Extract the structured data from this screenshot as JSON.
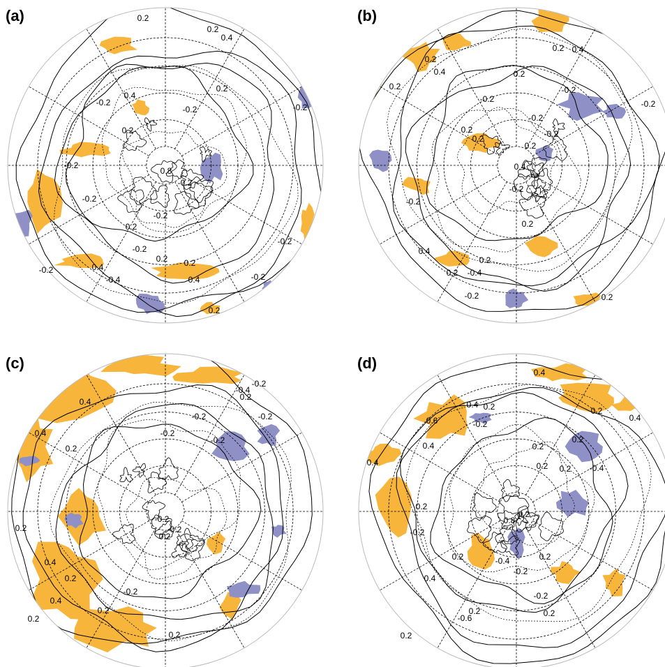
{
  "panels": [
    {
      "label": "(a)",
      "contour_labels": [
        "0.2",
        "0.2",
        "0.4",
        "0.2",
        "-0.2",
        "0.4",
        "-0.2",
        "0.2",
        "0.8",
        "-0.2",
        "-0.2",
        "-0.2",
        "-0.2",
        "0.2",
        "-0.2",
        "0.2",
        "0.2",
        "-0.2",
        "0.4",
        "-0.4",
        "0.4",
        "-0.2",
        "-0.2",
        "0.2",
        "-0.2"
      ]
    },
    {
      "label": "(b)",
      "contour_labels": [
        "0.2",
        "0.4",
        "0.2",
        "0.2",
        "0.2",
        "0.4",
        "-0.2",
        "-0.2",
        "-0.2",
        "0.2",
        "0.2",
        "-0.2",
        "0.2",
        "0.4",
        "-0.2",
        "-0.2",
        "0.2",
        "0.4",
        "0.2",
        "0.2",
        "-0.4",
        "-0.2",
        "0.2",
        "-0.2"
      ]
    },
    {
      "label": "(c)",
      "contour_labels": [
        "0.4",
        "0.4",
        "0.2",
        "-0.2",
        "-0.2",
        "-0.4",
        "0.2",
        "-0.2",
        "-0.2",
        "-0.2",
        "0.2",
        "-0.2",
        "0.2",
        "-0.2",
        "0.4",
        "0.2",
        "0.4",
        "0.2",
        "0.2",
        "-0.2",
        "0.2"
      ]
    },
    {
      "label": "(d)",
      "contour_labels": [
        "0.4",
        "0.4",
        "0.2",
        "0.2",
        "0.4",
        "0.6",
        "0.4",
        "-0.2",
        "0.2",
        "0.2",
        "0.4",
        "0.2",
        "0.2",
        "-0.4",
        "0.2",
        "0.2",
        "0.8",
        "-0.2",
        "0.2",
        "-0.4",
        "-0.2",
        "0.2",
        "0.4",
        "-0.2",
        "0.2",
        "-0.6",
        "0.2",
        "0.2"
      ]
    }
  ]
}
